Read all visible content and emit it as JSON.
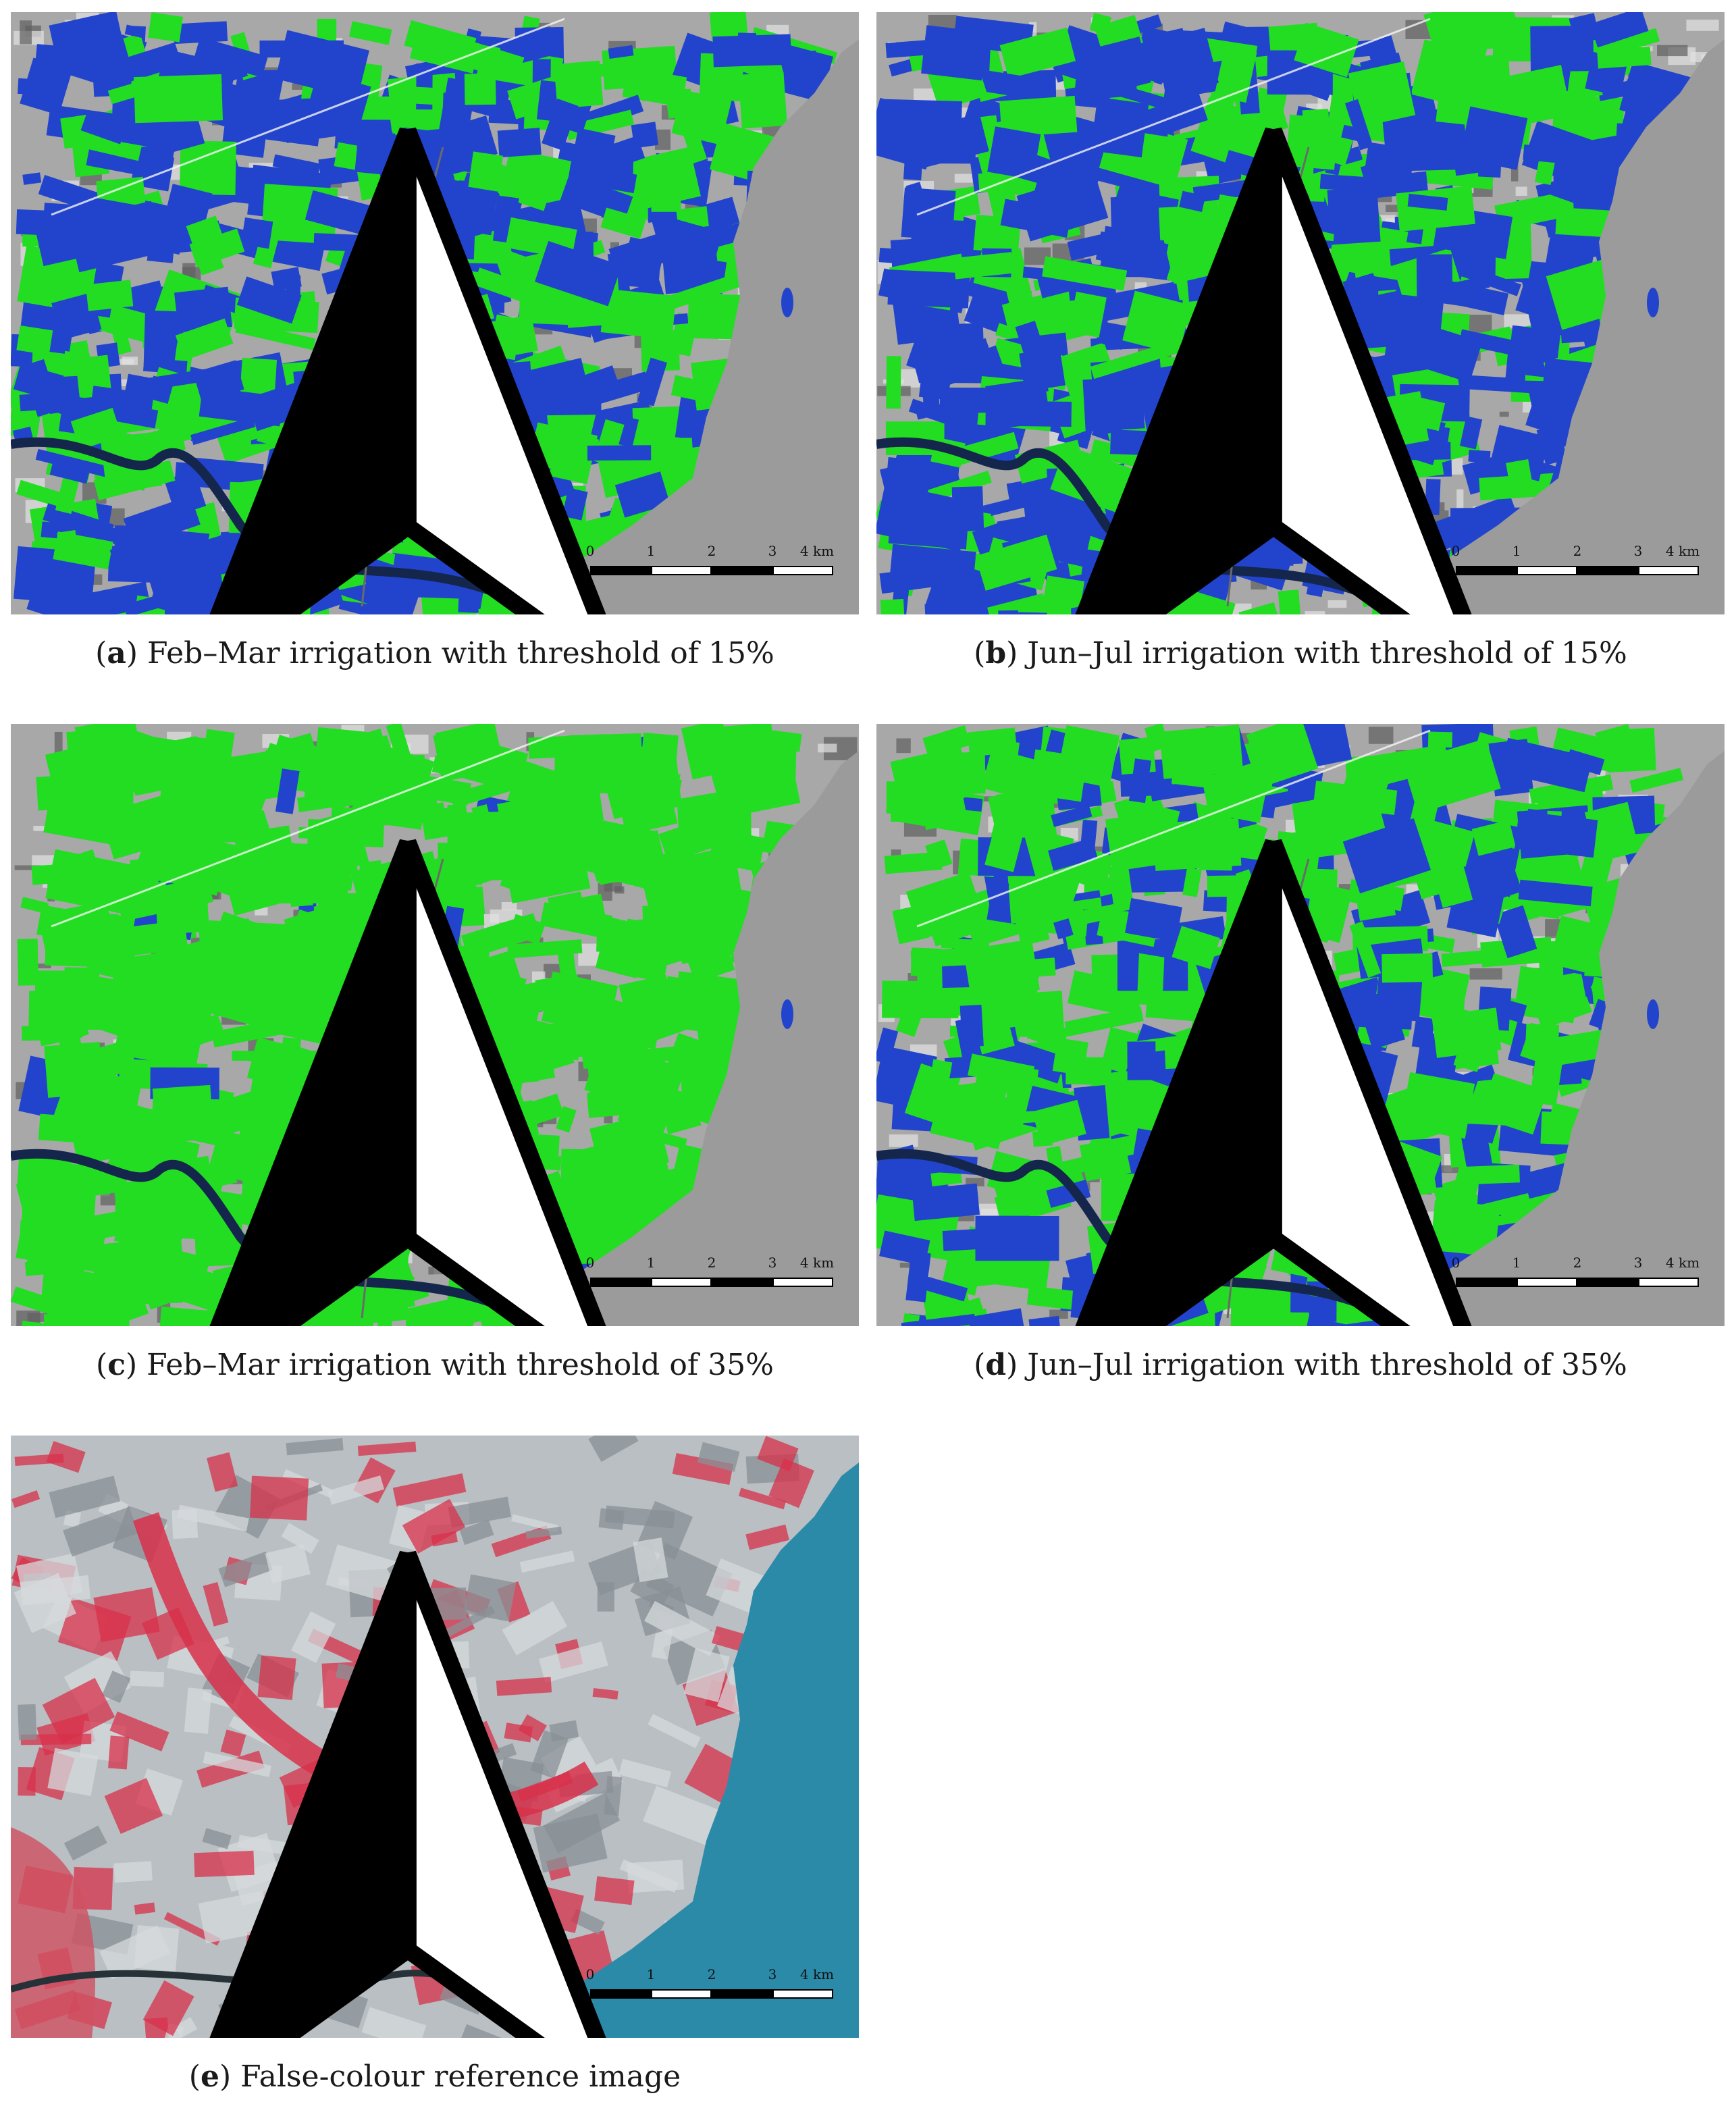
{
  "panels": [
    {
      "id": "a",
      "letter": "a",
      "caption": "Feb–Mar irrigation with threshold of 15%",
      "dominant": "blue"
    },
    {
      "id": "b",
      "letter": "b",
      "caption": "Jun–Jul irrigation with threshold of 15%",
      "dominant": "blue"
    },
    {
      "id": "c",
      "letter": "c",
      "caption": "Feb–Mar irrigation with threshold of 35%",
      "dominant": "green"
    },
    {
      "id": "d",
      "letter": "d",
      "caption": "Jun–Jul irrigation with threshold of 35%",
      "dominant": "mixed"
    },
    {
      "id": "e",
      "letter": "e",
      "caption": "False-colour reference image",
      "dominant": "false-colour"
    }
  ],
  "scale_bar": {
    "labels": [
      "0",
      "1",
      "2",
      "3",
      "4 km"
    ]
  },
  "colors": {
    "irrigated_green": "#22dd22",
    "irrigated_blue": "#2244cc",
    "background_gray": "#a8a8a8",
    "sea_gray": "#9b9b9b",
    "sea_blue": "#2a8aa8",
    "vegetation_red": "#d8304a"
  },
  "icons": {
    "north_arrow": "north-arrow-icon"
  }
}
